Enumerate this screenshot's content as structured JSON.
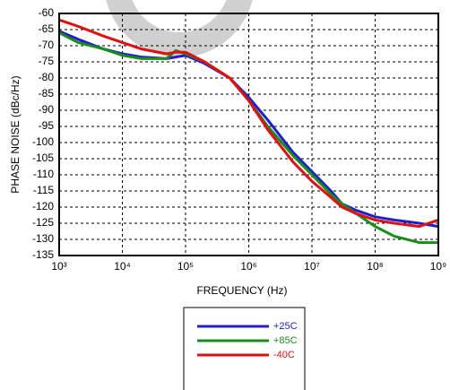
{
  "chart_data": {
    "type": "line",
    "x_label": "FREQUENCY (Hz)",
    "y_label": "PHASE NOISE (dBc/Hz)",
    "xscale": "log",
    "grid": true,
    "xlim": [
      1000,
      1000000000
    ],
    "xticks": [
      {
        "value": 1000,
        "label": "10³"
      },
      {
        "value": 10000,
        "label": "10⁴"
      },
      {
        "value": 100000,
        "label": "10⁵"
      },
      {
        "value": 1000000,
        "label": "10⁶"
      },
      {
        "value": 10000000,
        "label": "10⁷"
      },
      {
        "value": 100000000,
        "label": "10⁸"
      },
      {
        "value": 1000000000,
        "label": "10⁹"
      }
    ],
    "ylim": [
      -135,
      -60
    ],
    "yticks": [
      -60,
      -65,
      -70,
      -75,
      -80,
      -85,
      -90,
      -95,
      -100,
      -105,
      -110,
      -115,
      -120,
      -125,
      -130,
      -135
    ],
    "x": [
      1000,
      2000,
      5000,
      10000,
      20000,
      50000,
      70000,
      100000,
      200000,
      500000,
      1000000,
      2000000,
      5000000,
      10000000,
      20000000,
      30000000,
      50000000,
      100000000,
      200000000,
      500000000,
      1000000000
    ],
    "series": [
      {
        "name": "+25C",
        "color": "#1f1fd0",
        "values": [
          -65.5,
          -68,
          -71,
          -72.5,
          -73.5,
          -74,
          -73.5,
          -73,
          -75.5,
          -80,
          -86,
          -93,
          -103,
          -109,
          -115,
          -119,
          -121,
          -123,
          -124,
          -125,
          -126
        ]
      },
      {
        "name": "+85C",
        "color": "#1a8c1a",
        "values": [
          -66,
          -69,
          -71,
          -73,
          -74,
          -74,
          -71.5,
          -72.5,
          -75,
          -80,
          -87,
          -95,
          -104,
          -110,
          -116,
          -119,
          -122,
          -126,
          -129,
          -131,
          -131
        ]
      },
      {
        "name": "-40C",
        "color": "#e01010",
        "values": [
          -62,
          -64,
          -67,
          -69,
          -71,
          -72.5,
          -72,
          -72,
          -75,
          -80,
          -87,
          -96,
          -106,
          -112,
          -117,
          -120,
          -122,
          -124,
          -125,
          -126,
          -124
        ]
      }
    ]
  }
}
